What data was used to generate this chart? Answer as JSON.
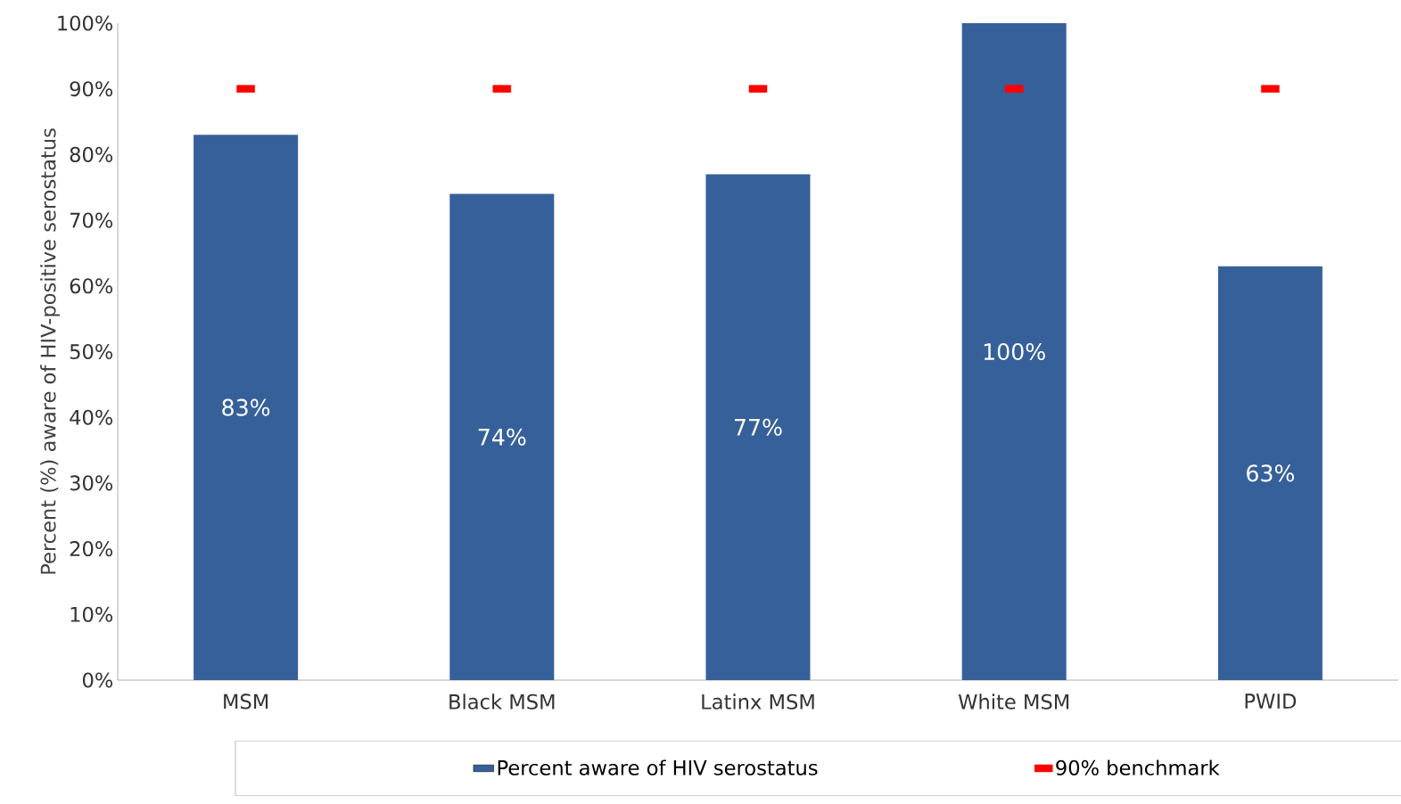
{
  "chart_data": {
    "type": "bar",
    "ylabel": "Percent (%) aware of HIV-positive serostatus",
    "categories": [
      "MSM",
      "Black MSM",
      "Latinx MSM",
      "White MSM",
      "PWID"
    ],
    "series": [
      {
        "name": "Percent aware of HIV serostatus",
        "color": "#36609a",
        "values": [
          83,
          74,
          77,
          100,
          63
        ],
        "value_labels": [
          "83%",
          "74%",
          "77%",
          "100%",
          "63%"
        ]
      },
      {
        "name": "90% benchmark",
        "type": "scatter",
        "color": "#ff0000",
        "values": [
          90,
          90,
          90,
          90,
          90
        ]
      }
    ],
    "ylim": [
      0,
      100
    ],
    "yticks": [
      {
        "value": 0,
        "label": "0%"
      },
      {
        "value": 10,
        "label": "10%"
      },
      {
        "value": 20,
        "label": "20%"
      },
      {
        "value": 30,
        "label": "30%"
      },
      {
        "value": 40,
        "label": "40%"
      },
      {
        "value": 50,
        "label": "50%"
      },
      {
        "value": 60,
        "label": "60%"
      },
      {
        "value": 70,
        "label": "70%"
      },
      {
        "value": 80,
        "label": "80%"
      },
      {
        "value": 90,
        "label": "90%"
      },
      {
        "value": 100,
        "label": "100%"
      }
    ],
    "legend": "bottom"
  }
}
